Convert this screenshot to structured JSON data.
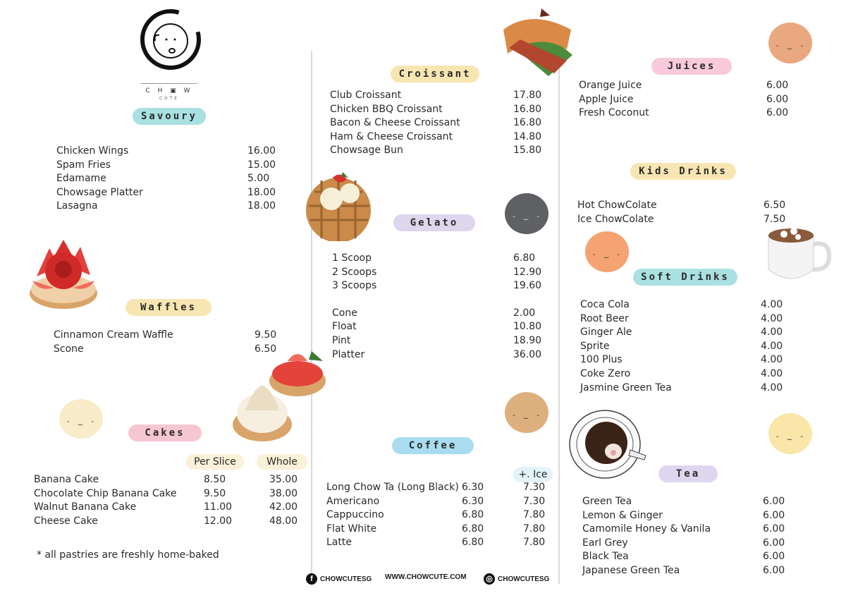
{
  "brand": {
    "name": "C H ▣ W",
    "tagline": "CUTE"
  },
  "colors": {
    "savoury": "#a9e0e2",
    "waffles": "#f8e6b2",
    "cakes": "#f7c6d3",
    "croissant": "#f8e6b2",
    "gelato": "#ddd6ee",
    "coffee": "#a9dcf0",
    "juices": "#f8cadb",
    "kids": "#f8e6b2",
    "soft": "#a9e0e2",
    "tea": "#ddd6ee"
  },
  "savoury": {
    "title": "Savoury",
    "items": [
      {
        "name": "Chicken Wings",
        "price": "16.00"
      },
      {
        "name": "Spam Fries",
        "price": "15.00"
      },
      {
        "name": "Edamame",
        "price": "5.00"
      },
      {
        "name": "Chowsage Platter",
        "price": "18.00"
      },
      {
        "name": "Lasagna",
        "price": "18.00"
      }
    ]
  },
  "waffles": {
    "title": "Waffles",
    "items": [
      {
        "name": "Cinnamon Cream Waffle",
        "price": "9.50"
      },
      {
        "name": "Scone",
        "price": "6.50"
      }
    ]
  },
  "cakes": {
    "title": "Cakes",
    "col1": "Per Slice",
    "col2": "Whole",
    "items": [
      {
        "name": "Banana Cake",
        "slice": "8.50",
        "whole": "35.00"
      },
      {
        "name": "Chocolate Chip Banana Cake",
        "slice": "9.50",
        "whole": "38.00"
      },
      {
        "name": "Walnut Banana Cake",
        "slice": "11.00",
        "whole": "42.00"
      },
      {
        "name": "Cheese Cake",
        "slice": "12.00",
        "whole": "48.00"
      }
    ],
    "note": "* all pastries are freshly home-baked"
  },
  "croissant": {
    "title": "Croissant",
    "items": [
      {
        "name": "Club Croissant",
        "price": "17.80"
      },
      {
        "name": "Chicken BBQ Croissant",
        "price": "16.80"
      },
      {
        "name": "Bacon & Cheese Croissant",
        "price": "16.80"
      },
      {
        "name": "Ham & Cheese Croissant",
        "price": "14.80"
      },
      {
        "name": "Chowsage Bun",
        "price": "15.80"
      }
    ]
  },
  "gelato": {
    "title": "Gelato",
    "items": [
      {
        "name": "1 Scoop",
        "price": "6.80"
      },
      {
        "name": "2 Scoops",
        "price": "12.90"
      },
      {
        "name": "3 Scoops",
        "price": "19.60"
      },
      {
        "name": "Cone",
        "price": "2.00"
      },
      {
        "name": "Float",
        "price": "10.80"
      },
      {
        "name": "Pint",
        "price": "18.90"
      },
      {
        "name": "Platter",
        "price": "36.00"
      }
    ]
  },
  "coffee": {
    "title": "Coffee",
    "col2": "+. Ice",
    "items": [
      {
        "name": "Long Chow Ta (Long Black)",
        "hot": "6.30",
        "ice": "7.30"
      },
      {
        "name": "Americano",
        "hot": "6.30",
        "ice": "7.30"
      },
      {
        "name": "Cappuccino",
        "hot": "6.80",
        "ice": "7.80"
      },
      {
        "name": "Flat White",
        "hot": "6.80",
        "ice": "7.80"
      },
      {
        "name": "Latte",
        "hot": "6.80",
        "ice": "7.80"
      }
    ]
  },
  "juices": {
    "title": "Juices",
    "items": [
      {
        "name": "Orange Juice",
        "price": "6.00"
      },
      {
        "name": "Apple Juice",
        "price": "6.00"
      },
      {
        "name": "Fresh Coconut",
        "price": "6.00"
      }
    ]
  },
  "kids": {
    "title": "Kids Drinks",
    "items": [
      {
        "name": "Hot ChowColate",
        "price": "6.50"
      },
      {
        "name": "Ice ChowColate",
        "price": "7.50"
      }
    ]
  },
  "soft": {
    "title": "Soft Drinks",
    "items": [
      {
        "name": "Coca Cola",
        "price": "4.00"
      },
      {
        "name": "Root Beer",
        "price": "4.00"
      },
      {
        "name": "Ginger Ale",
        "price": "4.00"
      },
      {
        "name": "Sprite",
        "price": "4.00"
      },
      {
        "name": "100 Plus",
        "price": "4.00"
      },
      {
        "name": "Coke Zero",
        "price": "4.00"
      },
      {
        "name": "Jasmine Green Tea",
        "price": "4.00"
      }
    ]
  },
  "tea": {
    "title": "Tea",
    "items": [
      {
        "name": "Green Tea",
        "price": "6.00"
      },
      {
        "name": "Lemon & Ginger",
        "price": "6.00"
      },
      {
        "name": "Camomile Honey & Vanila",
        "price": "6.00"
      },
      {
        "name": "Earl Grey",
        "price": "6.00"
      },
      {
        "name": "Black Tea",
        "price": "6.00"
      },
      {
        "name": "Japanese Green Tea",
        "price": "6.00"
      }
    ]
  },
  "footer": {
    "facebook": "CHOWCUTESG",
    "website": "WWW.CHOWCUTE.COM",
    "instagram": "CHOWCUTESG"
  }
}
